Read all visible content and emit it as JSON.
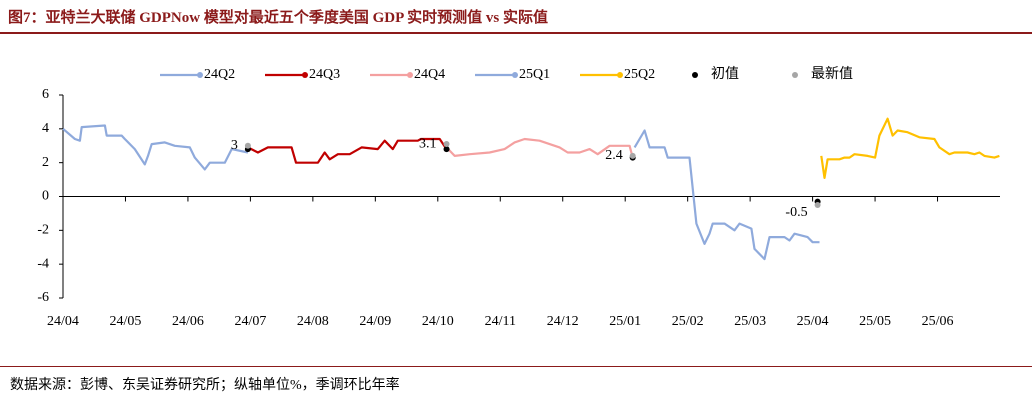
{
  "title": "图7：亚特兰大联储 GDPNow 模型对最近五个季度美国 GDP 实时预测值 vs 实际值",
  "source": "数据来源：彭博、东吴证券研究所；纵轴单位%，季调环比年率",
  "chart_data": {
    "type": "line",
    "xlim": [
      0,
      15
    ],
    "ylim": [
      -6,
      6
    ],
    "yticks": [
      -6,
      -4,
      -2,
      0,
      2,
      4,
      6
    ],
    "xticks": [
      {
        "value": 0,
        "label": "24/04"
      },
      {
        "value": 1,
        "label": "24/05"
      },
      {
        "value": 2,
        "label": "24/06"
      },
      {
        "value": 3,
        "label": "24/07"
      },
      {
        "value": 4,
        "label": "24/08"
      },
      {
        "value": 5,
        "label": "24/09"
      },
      {
        "value": 6,
        "label": "24/10"
      },
      {
        "value": 7,
        "label": "24/11"
      },
      {
        "value": 8,
        "label": "24/12"
      },
      {
        "value": 9,
        "label": "25/01"
      },
      {
        "value": 10,
        "label": "25/02"
      },
      {
        "value": 11,
        "label": "25/03"
      },
      {
        "value": 12,
        "label": "25/04"
      },
      {
        "value": 13,
        "label": "25/05"
      },
      {
        "value": 14,
        "label": "25/06"
      }
    ],
    "grid": false,
    "legend": "top",
    "series": [
      {
        "name": "24Q2",
        "color": "#8faadc",
        "mode": "line",
        "x": [
          0,
          0.19,
          0.27,
          0.3,
          0.67,
          0.7,
          0.94,
          0.99,
          1.15,
          1.31,
          1.36,
          1.42,
          1.63,
          1.79,
          2.03,
          2.11,
          2.27,
          2.35,
          2.59,
          2.7,
          2.96
        ],
        "values": [
          4.0,
          3.4,
          3.3,
          4.1,
          4.2,
          3.6,
          3.6,
          3.4,
          2.8,
          1.9,
          2.4,
          3.1,
          3.2,
          3.0,
          2.9,
          2.3,
          1.6,
          2.0,
          2.0,
          2.8,
          2.6
        ]
      },
      {
        "name": "24Q3",
        "color": "#c00000",
        "mode": "line",
        "x": [
          2.96,
          3.12,
          3.28,
          3.66,
          3.73,
          4.08,
          4.19,
          4.27,
          4.4,
          4.59,
          4.78,
          5.04,
          5.15,
          5.28,
          5.36,
          5.68,
          5.73,
          6.03,
          6.14
        ],
        "values": [
          2.9,
          2.6,
          2.9,
          2.9,
          2.0,
          2.0,
          2.6,
          2.2,
          2.5,
          2.5,
          2.9,
          2.8,
          3.3,
          2.8,
          3.3,
          3.3,
          3.4,
          3.4,
          2.8
        ]
      },
      {
        "name": "24Q4",
        "color": "#f4a0a0",
        "mode": "line",
        "x": [
          6.14,
          6.27,
          6.51,
          6.83,
          7.07,
          7.23,
          7.39,
          7.63,
          7.95,
          8.08,
          8.27,
          8.43,
          8.56,
          8.75,
          9.07,
          9.12
        ],
        "values": [
          2.9,
          2.4,
          2.5,
          2.6,
          2.8,
          3.2,
          3.4,
          3.3,
          2.9,
          2.6,
          2.6,
          2.8,
          2.5,
          3.0,
          3.0,
          2.3
        ]
      },
      {
        "name": "25Q1",
        "color": "#8faadc",
        "mode": "line",
        "x": [
          9.15,
          9.31,
          9.39,
          9.63,
          9.68,
          10.03,
          10.14,
          10.27,
          10.35,
          10.4,
          10.59,
          10.75,
          10.83,
          11.02,
          11.07,
          11.23,
          11.31,
          11.55,
          11.63,
          11.71,
          11.92,
          12.0,
          12.11
        ],
        "values": [
          2.9,
          3.9,
          2.9,
          2.9,
          2.3,
          2.3,
          -1.6,
          -2.8,
          -2.2,
          -1.6,
          -1.6,
          -2.0,
          -1.6,
          -1.9,
          -3.1,
          -3.7,
          -2.4,
          -2.4,
          -2.6,
          -2.2,
          -2.4,
          -2.7,
          -2.7
        ]
      },
      {
        "name": "25Q2",
        "color": "#ffc000",
        "mode": "line",
        "x": [
          12.14,
          12.19,
          12.24,
          12.43,
          12.51,
          12.59,
          12.67,
          12.88,
          13.0,
          13.07,
          13.2,
          13.28,
          13.36,
          13.52,
          13.71,
          13.95,
          14.03,
          14.19,
          14.27,
          14.48,
          14.59,
          14.67,
          14.75,
          14.91,
          14.99
        ],
        "values": [
          2.4,
          1.1,
          2.2,
          2.2,
          2.3,
          2.3,
          2.5,
          2.4,
          2.3,
          3.6,
          4.6,
          3.6,
          3.9,
          3.8,
          3.5,
          3.4,
          2.9,
          2.5,
          2.6,
          2.6,
          2.5,
          2.6,
          2.4,
          2.3,
          2.4
        ]
      },
      {
        "name": "初值",
        "color": "#000000",
        "mode": "markers",
        "x": [
          2.96,
          6.14,
          9.12,
          12.08
        ],
        "values": [
          2.8,
          2.8,
          2.3,
          -0.3
        ]
      },
      {
        "name": "最新值",
        "color": "#a6a6a6",
        "mode": "markers",
        "labels": true,
        "x": [
          2.96,
          6.14,
          9.12,
          12.08
        ],
        "values": [
          3,
          3.1,
          2.4,
          -0.5
        ]
      }
    ]
  }
}
